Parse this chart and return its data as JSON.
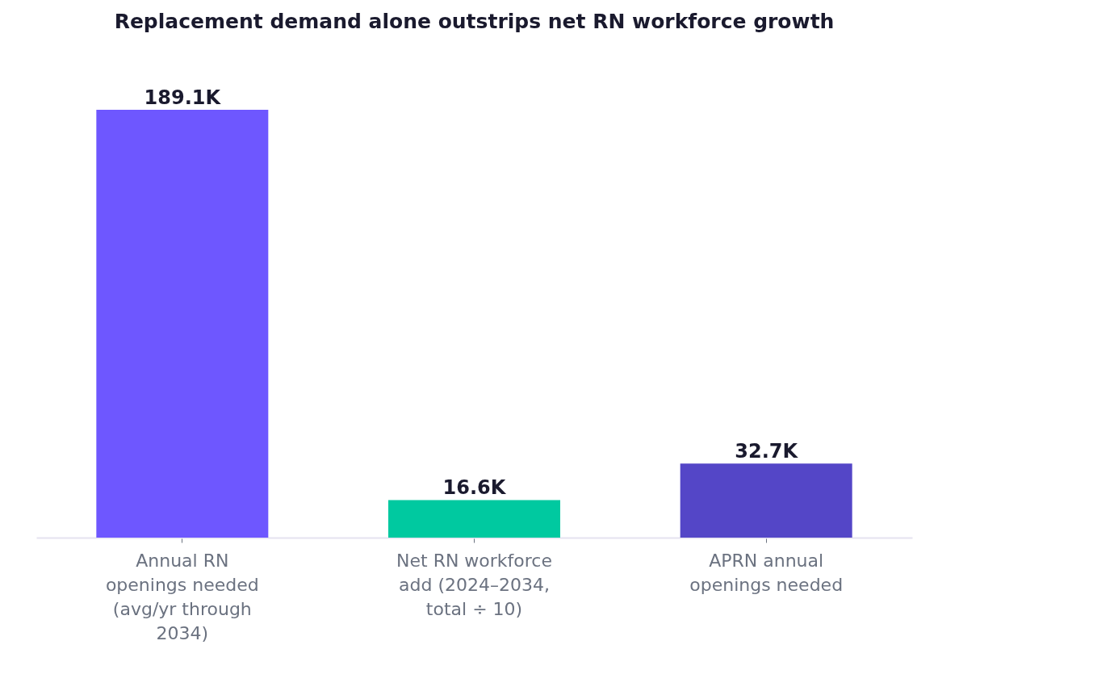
{
  "chart_data": {
    "type": "bar",
    "title": "Replacement demand alone outstrips net RN workforce growth",
    "categories": [
      "Annual RN openings needed (avg/yr through 2034)",
      "Net RN workforce add (2024–2034, total ÷ 10)",
      "APRN annual openings needed"
    ],
    "values": [
      189.1,
      16.6,
      32.7
    ],
    "value_labels": [
      "189.1K",
      "16.6K",
      "32.7K"
    ],
    "colors": [
      "#6e57ff",
      "#00c9a0",
      "#5446c7"
    ],
    "tick_labels": "x"
  }
}
